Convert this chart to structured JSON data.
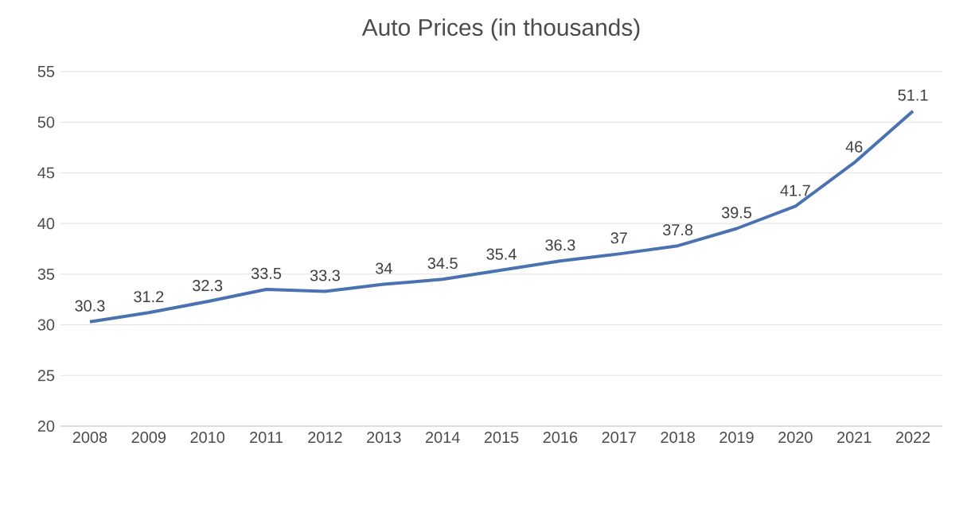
{
  "chart_data": {
    "type": "line",
    "title": "Auto Prices (in thousands)",
    "categories": [
      "2008",
      "2009",
      "2010",
      "2011",
      "2012",
      "2013",
      "2014",
      "2015",
      "2016",
      "2017",
      "2018",
      "2019",
      "2020",
      "2021",
      "2022"
    ],
    "values": [
      30.3,
      31.2,
      32.3,
      33.5,
      33.3,
      34,
      34.5,
      35.4,
      36.3,
      37,
      37.8,
      39.5,
      41.7,
      46,
      51.1
    ],
    "color": "#4a72b0",
    "ylim": [
      20,
      55
    ],
    "yticks": [
      20,
      25,
      30,
      35,
      40,
      45,
      50,
      55
    ],
    "grid": "y",
    "data_labels": true,
    "marker": "none",
    "line_style": "solid"
  }
}
